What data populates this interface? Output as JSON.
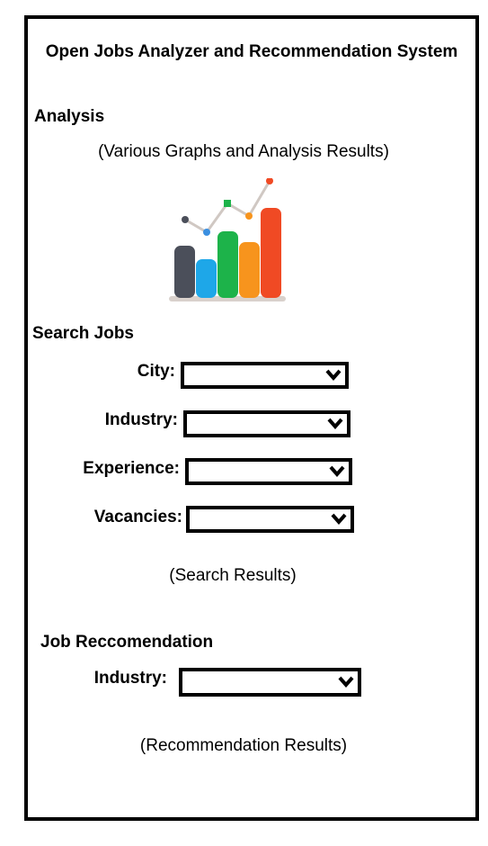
{
  "app": {
    "title": "Open Jobs Analyzer and Recommendation System"
  },
  "analysis": {
    "heading": "Analysis",
    "placeholder": "(Various Graphs and Analysis Results)",
    "chart_icon": "bar-chart-icon",
    "icon_colors": [
      "#4b4f5a",
      "#1ea7e8",
      "#1db34a",
      "#f7941d",
      "#f04a24"
    ]
  },
  "search": {
    "heading": "Search Jobs",
    "fields": [
      {
        "label": "City:",
        "value": "",
        "icon": "chevron-down-icon"
      },
      {
        "label": "Industry:",
        "value": "",
        "icon": "chevron-down-icon"
      },
      {
        "label": "Experience:",
        "value": "",
        "icon": "chevron-down-icon"
      },
      {
        "label": "Vacancies:",
        "value": "",
        "icon": "chevron-down-icon"
      }
    ],
    "results": "(Search Results)"
  },
  "recommendation": {
    "heading": "Job Reccomendation",
    "fields": [
      {
        "label": "Industry:",
        "value": "",
        "icon": "chevron-down-icon"
      }
    ],
    "results": "(Recommendation Results)"
  }
}
